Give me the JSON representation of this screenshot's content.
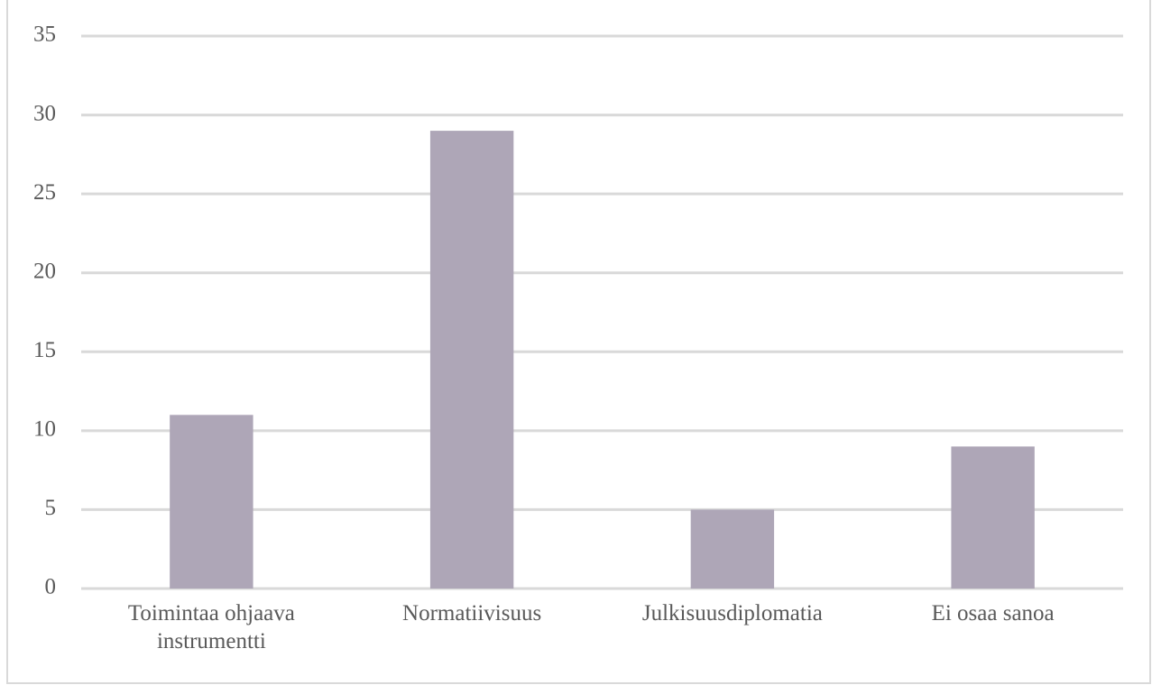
{
  "chart_data": {
    "type": "bar",
    "categories": [
      "Toimintaa ohjaava instrumentti",
      "Normatiivisuus",
      "Julkisuusdiplomatia",
      "Ei osaa sanoa"
    ],
    "values": [
      11,
      29,
      5,
      9
    ],
    "color": "#aea6b7",
    "ylim": [
      0,
      35
    ],
    "yticks": [
      0,
      5,
      10,
      15,
      20,
      25,
      30,
      35
    ],
    "grid": true
  }
}
